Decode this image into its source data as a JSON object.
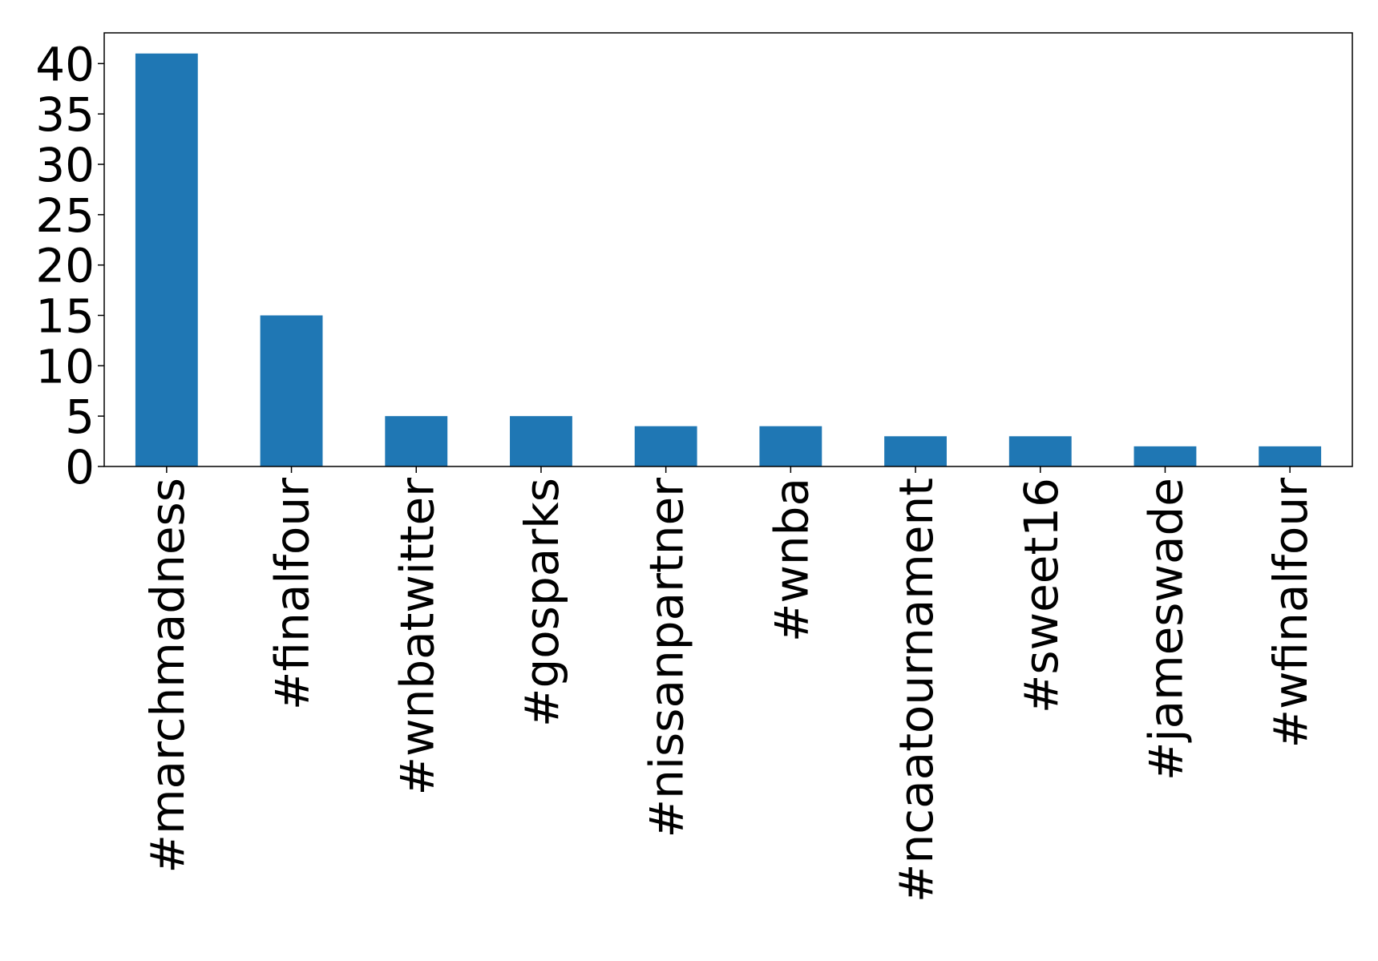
{
  "chart_data": {
    "type": "bar",
    "categories": [
      "#marchmadness",
      "#finalfour",
      "#wnbatwitter",
      "#gosparks",
      "#nissanpartner",
      "#wnba",
      "#ncaatournament",
      "#sweet16",
      "#jameswade",
      "#wfinalfour"
    ],
    "values": [
      41,
      15,
      5,
      5,
      4,
      4,
      3,
      3,
      2,
      2
    ],
    "color": "#1f77b4",
    "ylim": [
      0,
      43.05
    ],
    "yticks": [
      0,
      5,
      10,
      15,
      20,
      25,
      30,
      35,
      40
    ],
    "grid": false
  }
}
